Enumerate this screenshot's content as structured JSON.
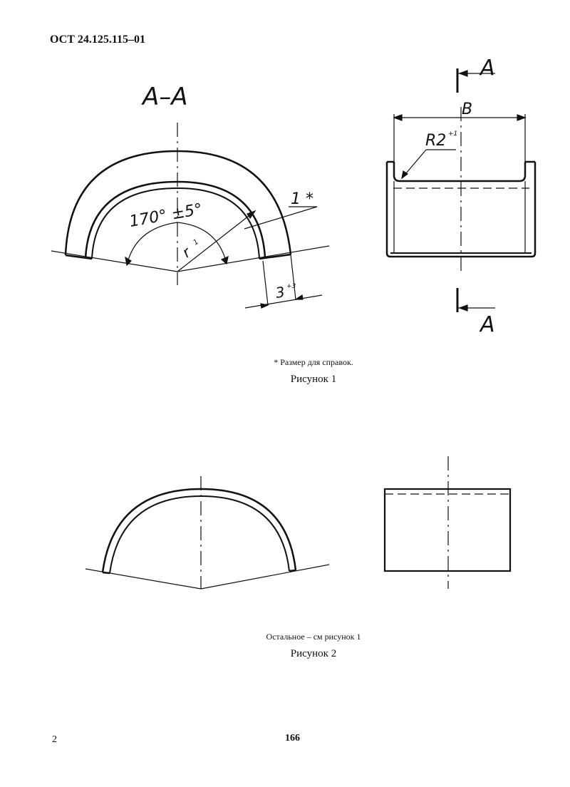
{
  "header": {
    "doc_code": "ОСТ 24.125.115–01"
  },
  "figure1": {
    "section_label": "А–А",
    "angle_label": "170° ±5°",
    "radius_label": "r",
    "radius_sub": "1",
    "ref_dim_label": "1 *",
    "width_dim_label": "3",
    "width_dim_tol": "+3",
    "b_label": "B",
    "r2_label": "R2",
    "r2_tol": "+1",
    "cut_top_label": "А",
    "cut_bottom_label": "А",
    "note": "* Размер для справок.",
    "caption": "Рисунок 1"
  },
  "figure2": {
    "note": "Остальное – см рисунок 1",
    "caption": "Рисунок 2"
  },
  "footer": {
    "page_left": "2",
    "page_center": "166"
  }
}
